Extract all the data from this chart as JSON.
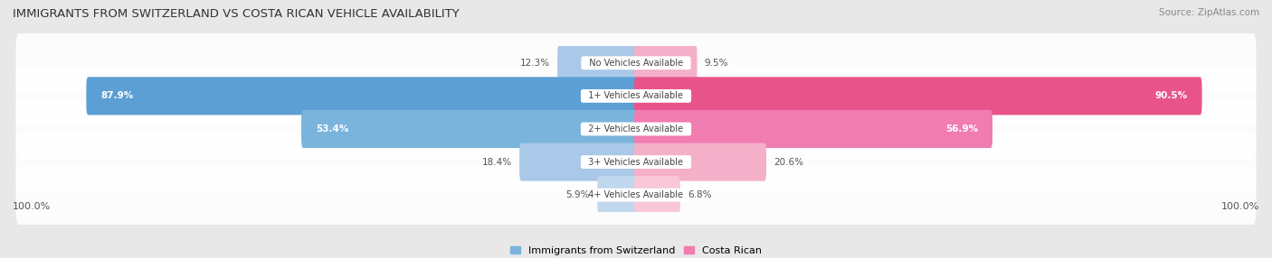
{
  "title": "IMMIGRANTS FROM SWITZERLAND VS COSTA RICAN VEHICLE AVAILABILITY",
  "source": "Source: ZipAtlas.com",
  "categories": [
    "No Vehicles Available",
    "1+ Vehicles Available",
    "2+ Vehicles Available",
    "3+ Vehicles Available",
    "4+ Vehicles Available"
  ],
  "switzerland_values": [
    12.3,
    87.9,
    53.4,
    18.4,
    5.9
  ],
  "costa_rican_values": [
    9.5,
    90.5,
    56.9,
    20.6,
    6.8
  ],
  "switzerland_colors": [
    "#aac8e8",
    "#5b9fd4",
    "#7ab4dc",
    "#aac8e8",
    "#c0d8ee"
  ],
  "costa_rican_colors": [
    "#f4b0c8",
    "#e8538a",
    "#f07cb0",
    "#f4b0c8",
    "#f8c8d8"
  ],
  "bg_color": "#e8e8e8",
  "row_bg_color": "#f4f4f4",
  "max_value": 100.0,
  "legend_switzerland": "Immigrants from Switzerland",
  "legend_costa_rican": "Costa Rican",
  "bottom_left_label": "100.0%",
  "bottom_right_label": "100.0%"
}
